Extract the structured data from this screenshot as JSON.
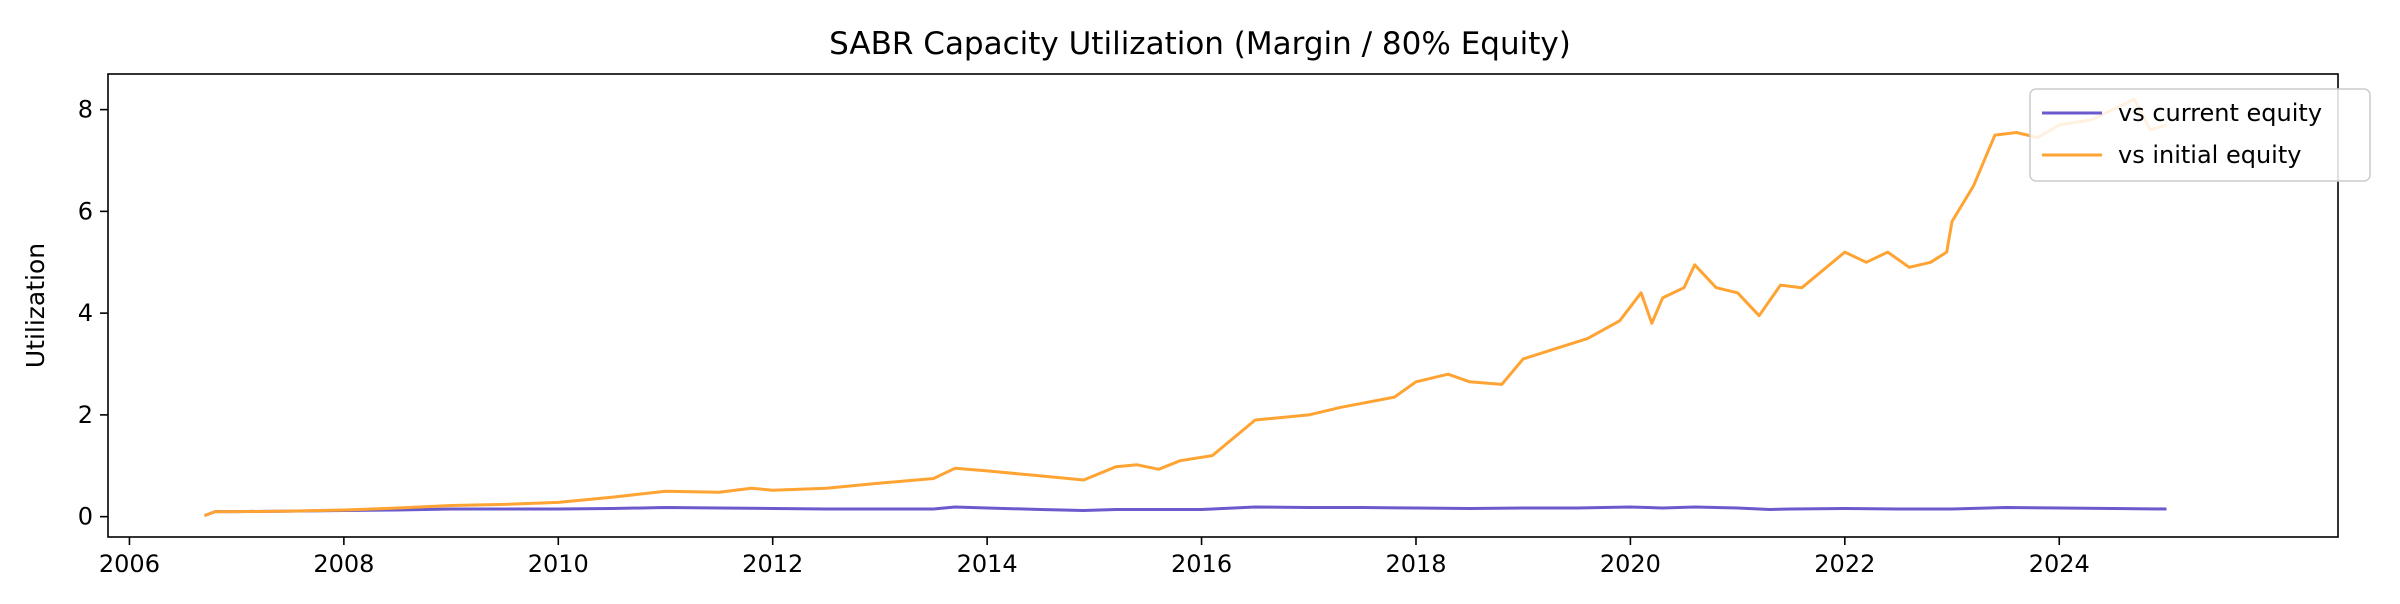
{
  "chart_data": {
    "type": "line",
    "title": "SABR Capacity Utilization (Margin / 80% Equity)",
    "xlabel": "",
    "ylabel": "Utilization",
    "xlim": [
      2005.8,
      2026.6
    ],
    "ylim": [
      -0.4,
      8.7
    ],
    "xticks": [
      {
        "value": 2006,
        "label": "2006"
      },
      {
        "value": 2008,
        "label": "2008"
      },
      {
        "value": 2010,
        "label": "2010"
      },
      {
        "value": 2012,
        "label": "2012"
      },
      {
        "value": 2014,
        "label": "2014"
      },
      {
        "value": 2016,
        "label": "2016"
      },
      {
        "value": 2018,
        "label": "2018"
      },
      {
        "value": 2020,
        "label": "2020"
      },
      {
        "value": 2022,
        "label": "2022"
      },
      {
        "value": 2024,
        "label": "2024"
      }
    ],
    "yticks": [
      {
        "value": 0,
        "label": "0"
      },
      {
        "value": 2,
        "label": "2"
      },
      {
        "value": 4,
        "label": "4"
      },
      {
        "value": 6,
        "label": "6"
      },
      {
        "value": 8,
        "label": "8"
      }
    ],
    "grid": false,
    "legend_position": "top-right",
    "series": [
      {
        "name": "vs current equity",
        "color": "#6a5acd",
        "points": [
          [
            2006.7,
            0.02
          ],
          [
            2006.8,
            0.1
          ],
          [
            2007.0,
            0.1
          ],
          [
            2007.5,
            0.11
          ],
          [
            2008.0,
            0.12
          ],
          [
            2008.5,
            0.13
          ],
          [
            2009.0,
            0.15
          ],
          [
            2009.5,
            0.15
          ],
          [
            2010.0,
            0.15
          ],
          [
            2010.5,
            0.16
          ],
          [
            2011.0,
            0.18
          ],
          [
            2011.5,
            0.17
          ],
          [
            2012.0,
            0.16
          ],
          [
            2012.5,
            0.15
          ],
          [
            2013.0,
            0.15
          ],
          [
            2013.5,
            0.15
          ],
          [
            2013.7,
            0.19
          ],
          [
            2014.0,
            0.17
          ],
          [
            2014.5,
            0.14
          ],
          [
            2014.9,
            0.12
          ],
          [
            2015.2,
            0.14
          ],
          [
            2015.5,
            0.14
          ],
          [
            2016.0,
            0.14
          ],
          [
            2016.5,
            0.19
          ],
          [
            2017.0,
            0.18
          ],
          [
            2017.5,
            0.18
          ],
          [
            2018.0,
            0.17
          ],
          [
            2018.5,
            0.16
          ],
          [
            2019.0,
            0.17
          ],
          [
            2019.5,
            0.17
          ],
          [
            2020.0,
            0.19
          ],
          [
            2020.3,
            0.17
          ],
          [
            2020.6,
            0.19
          ],
          [
            2021.0,
            0.17
          ],
          [
            2021.3,
            0.14
          ],
          [
            2021.5,
            0.15
          ],
          [
            2022.0,
            0.16
          ],
          [
            2022.5,
            0.15
          ],
          [
            2023.0,
            0.15
          ],
          [
            2023.5,
            0.18
          ],
          [
            2024.0,
            0.17
          ],
          [
            2024.5,
            0.16
          ],
          [
            2025.0,
            0.15
          ]
        ]
      },
      {
        "name": "vs initial equity",
        "color": "#ffa333",
        "points": [
          [
            2006.7,
            0.02
          ],
          [
            2006.8,
            0.1
          ],
          [
            2007.0,
            0.1
          ],
          [
            2007.5,
            0.11
          ],
          [
            2008.0,
            0.13
          ],
          [
            2008.5,
            0.17
          ],
          [
            2009.0,
            0.22
          ],
          [
            2009.5,
            0.24
          ],
          [
            2010.0,
            0.28
          ],
          [
            2010.5,
            0.38
          ],
          [
            2011.0,
            0.5
          ],
          [
            2011.5,
            0.48
          ],
          [
            2011.8,
            0.56
          ],
          [
            2012.0,
            0.52
          ],
          [
            2012.5,
            0.56
          ],
          [
            2013.0,
            0.66
          ],
          [
            2013.5,
            0.75
          ],
          [
            2013.7,
            0.95
          ],
          [
            2014.0,
            0.9
          ],
          [
            2014.5,
            0.8
          ],
          [
            2014.9,
            0.72
          ],
          [
            2015.2,
            0.98
          ],
          [
            2015.4,
            1.02
          ],
          [
            2015.6,
            0.93
          ],
          [
            2015.8,
            1.1
          ],
          [
            2016.1,
            1.2
          ],
          [
            2016.5,
            1.9
          ],
          [
            2017.0,
            2.0
          ],
          [
            2017.3,
            2.15
          ],
          [
            2017.8,
            2.35
          ],
          [
            2018.0,
            2.65
          ],
          [
            2018.3,
            2.8
          ],
          [
            2018.5,
            2.65
          ],
          [
            2018.8,
            2.6
          ],
          [
            2019.0,
            3.1
          ],
          [
            2019.3,
            3.3
          ],
          [
            2019.6,
            3.5
          ],
          [
            2019.9,
            3.85
          ],
          [
            2020.1,
            4.4
          ],
          [
            2020.2,
            3.8
          ],
          [
            2020.3,
            4.3
          ],
          [
            2020.5,
            4.5
          ],
          [
            2020.6,
            4.95
          ],
          [
            2020.8,
            4.5
          ],
          [
            2021.0,
            4.4
          ],
          [
            2021.2,
            3.95
          ],
          [
            2021.4,
            4.55
          ],
          [
            2021.6,
            4.5
          ],
          [
            2022.0,
            5.2
          ],
          [
            2022.2,
            5.0
          ],
          [
            2022.4,
            5.2
          ],
          [
            2022.6,
            4.9
          ],
          [
            2022.8,
            5.0
          ],
          [
            2022.95,
            5.2
          ],
          [
            2023.0,
            5.8
          ],
          [
            2023.2,
            6.5
          ],
          [
            2023.4,
            7.5
          ],
          [
            2023.6,
            7.55
          ],
          [
            2023.8,
            7.45
          ],
          [
            2024.0,
            7.7
          ],
          [
            2024.3,
            7.8
          ],
          [
            2024.5,
            8.0
          ],
          [
            2024.7,
            8.2
          ],
          [
            2024.85,
            7.6
          ],
          [
            2025.0,
            7.7
          ]
        ]
      }
    ]
  }
}
